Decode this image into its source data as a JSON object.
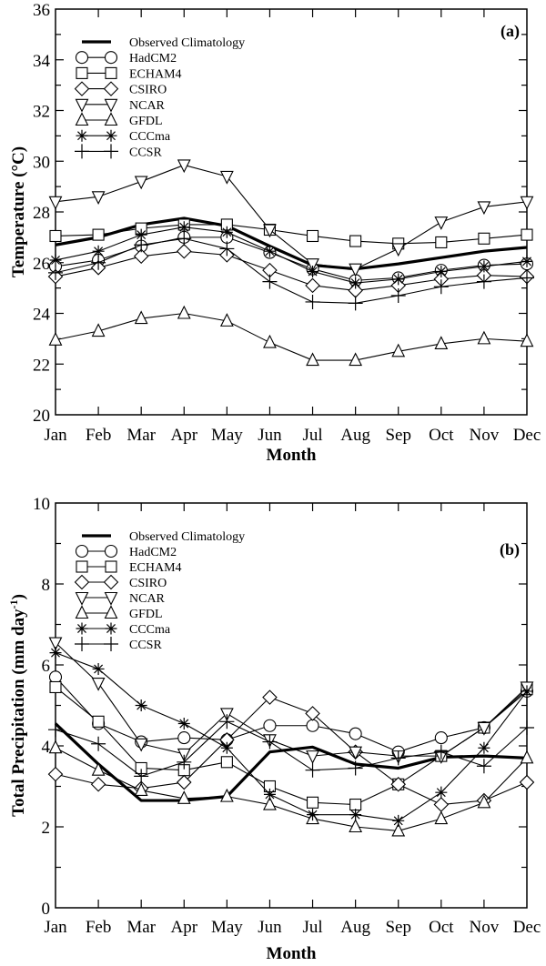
{
  "chart_data": [
    {
      "type": "line",
      "panel_label": "(a)",
      "title": "",
      "xlabel": "Month",
      "ylabel": "Temperature (°C)",
      "ylim": [
        20,
        36
      ],
      "yticks": [
        20,
        22,
        24,
        26,
        28,
        30,
        32,
        34,
        36
      ],
      "grid": false,
      "legend_position": "top-left",
      "categories": [
        "Jan",
        "Feb",
        "Mar",
        "Apr",
        "May",
        "Jun",
        "Jul",
        "Aug",
        "Sep",
        "Oct",
        "Nov",
        "Dec"
      ],
      "series": [
        {
          "name": "Observed Climatology",
          "marker": "none",
          "values": [
            26.7,
            27.0,
            27.5,
            27.75,
            27.45,
            26.65,
            25.9,
            25.75,
            25.95,
            26.2,
            26.45,
            26.6
          ]
        },
        {
          "name": "HadCM2",
          "marker": "circle",
          "values": [
            25.85,
            26.1,
            26.65,
            27.0,
            27.0,
            26.4,
            25.75,
            25.3,
            25.4,
            25.7,
            25.9,
            25.95
          ]
        },
        {
          "name": "ECHAM4",
          "marker": "square",
          "values": [
            27.05,
            27.1,
            27.35,
            27.5,
            27.5,
            27.3,
            27.05,
            26.85,
            26.75,
            26.8,
            26.95,
            27.1
          ]
        },
        {
          "name": "CSIRO",
          "marker": "diamond",
          "values": [
            25.45,
            25.8,
            26.25,
            26.45,
            26.3,
            25.7,
            25.1,
            24.9,
            25.1,
            25.35,
            25.5,
            25.45
          ]
        },
        {
          "name": "NCAR",
          "marker": "triangle-down",
          "values": [
            28.4,
            28.6,
            29.2,
            29.85,
            29.4,
            27.3,
            25.95,
            25.75,
            26.55,
            27.6,
            28.2,
            28.4
          ]
        },
        {
          "name": "GFDL",
          "marker": "triangle-up",
          "values": [
            22.95,
            23.3,
            23.8,
            24.0,
            23.7,
            22.85,
            22.15,
            22.15,
            22.5,
            22.8,
            23.0,
            22.9
          ]
        },
        {
          "name": "CCCma",
          "marker": "asterisk",
          "values": [
            26.1,
            26.45,
            27.1,
            27.4,
            27.2,
            26.45,
            25.65,
            25.2,
            25.35,
            25.65,
            25.85,
            26.05
          ]
        },
        {
          "name": "CCSR",
          "marker": "plus",
          "values": [
            25.6,
            26.0,
            26.7,
            26.95,
            26.55,
            25.25,
            24.45,
            24.4,
            24.7,
            25.05,
            25.25,
            25.4
          ]
        }
      ]
    },
    {
      "type": "line",
      "panel_label": "(b)",
      "title": "",
      "xlabel": "Month",
      "ylabel": "Total Precipitation (mm day",
      "ylabel_superscript": "-1",
      "ylabel_suffix": ")",
      "ylim": [
        0,
        10
      ],
      "yticks": [
        0,
        2,
        4,
        6,
        8,
        10
      ],
      "grid": false,
      "legend_position": "top-left",
      "categories": [
        "Jan",
        "Feb",
        "Mar",
        "Apr",
        "May",
        "Jun",
        "Jul",
        "Aug",
        "Sep",
        "Oct",
        "Nov",
        "Dec"
      ],
      "series": [
        {
          "name": "Observed Climatology",
          "marker": "none",
          "values": [
            4.55,
            3.55,
            2.65,
            2.65,
            2.75,
            3.85,
            3.97,
            3.55,
            3.45,
            3.72,
            3.75,
            3.7
          ]
        },
        {
          "name": "HadCM2",
          "marker": "circle",
          "values": [
            5.7,
            4.55,
            4.1,
            4.2,
            4.15,
            4.5,
            4.5,
            4.3,
            3.85,
            4.2,
            4.45,
            5.35
          ]
        },
        {
          "name": "ECHAM4",
          "marker": "square",
          "values": [
            5.45,
            4.6,
            3.45,
            3.4,
            3.6,
            3.0,
            2.6,
            2.55,
            3.05,
            3.75,
            4.45,
            5.4
          ]
        },
        {
          "name": "CSIRO",
          "marker": "diamond",
          "values": [
            3.3,
            3.05,
            2.95,
            3.1,
            4.15,
            5.2,
            4.8,
            3.85,
            3.05,
            2.55,
            2.65,
            3.1
          ]
        },
        {
          "name": "NCAR",
          "marker": "triangle-down",
          "values": [
            6.55,
            5.55,
            4.05,
            3.8,
            4.8,
            4.15,
            3.75,
            3.85,
            3.75,
            3.75,
            4.45,
            5.45
          ]
        },
        {
          "name": "GFDL",
          "marker": "triangle-up",
          "values": [
            3.95,
            3.4,
            2.9,
            2.7,
            2.75,
            2.55,
            2.2,
            2.0,
            1.9,
            2.2,
            2.6,
            3.7
          ]
        },
        {
          "name": "CCCma",
          "marker": "asterisk",
          "values": [
            6.3,
            5.9,
            5.0,
            4.55,
            3.95,
            2.8,
            2.3,
            2.3,
            2.15,
            2.85,
            3.95,
            5.35
          ]
        },
        {
          "name": "CCSR",
          "marker": "plus",
          "values": [
            4.4,
            4.05,
            3.25,
            3.6,
            4.6,
            4.1,
            3.4,
            3.45,
            3.7,
            3.85,
            3.5,
            4.45
          ]
        }
      ]
    }
  ]
}
